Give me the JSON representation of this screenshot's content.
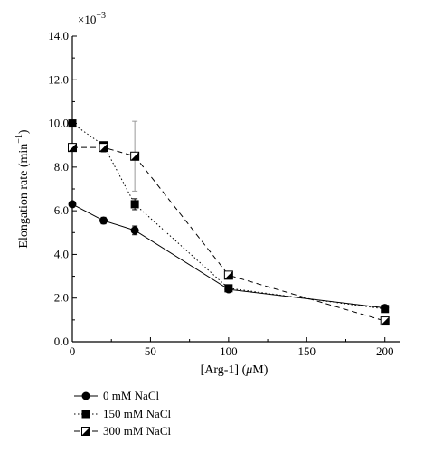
{
  "chart_data": {
    "type": "line",
    "ylabel": "Elongation rate (min",
    "ylabel_sup": "−1",
    "ylabel_close": ")",
    "xlabel": "[Arg-1] (",
    "xlabel_mu": "μ",
    "xlabel_unit": "M)",
    "y_multiplier_base": "×10",
    "y_multiplier_exp": "−3",
    "xlim": [
      0,
      210
    ],
    "ylim": [
      0,
      14
    ],
    "x_ticks": [
      0,
      50,
      100,
      150,
      200
    ],
    "x_tick_labels": [
      "0",
      "50",
      "100",
      "150",
      "200"
    ],
    "y_ticks": [
      0,
      2,
      4,
      6,
      8,
      10,
      12,
      14
    ],
    "y_tick_labels": [
      "0.0",
      "2.0",
      "4.0",
      "6.0",
      "8.0",
      "10.0",
      "12.0",
      "14.0"
    ],
    "grid": false,
    "legend_position": "bottom-left",
    "series": [
      {
        "name": "0 mM NaCl",
        "marker": "circle",
        "line_style": "solid",
        "x": [
          0,
          20,
          40,
          100,
          200
        ],
        "y": [
          6.3,
          5.55,
          5.1,
          2.4,
          1.55
        ],
        "err": [
          0.1,
          0.15,
          0.2,
          0.1,
          0.1
        ]
      },
      {
        "name": "150 mM NaCl",
        "marker": "square",
        "line_style": "dotted",
        "x": [
          0,
          20,
          40,
          100,
          200
        ],
        "y": [
          10.0,
          9.0,
          6.3,
          2.45,
          1.5
        ],
        "err": [
          0.1,
          0.1,
          0.25,
          0.1,
          0.1
        ]
      },
      {
        "name": "300 mM NaCl",
        "marker": "half-square",
        "line_style": "dashed",
        "x": [
          0,
          20,
          40,
          100,
          200
        ],
        "y": [
          8.9,
          8.9,
          8.5,
          3.05,
          0.95
        ],
        "err": [
          0.1,
          0.2,
          1.6,
          0.1,
          0.1
        ]
      }
    ]
  }
}
